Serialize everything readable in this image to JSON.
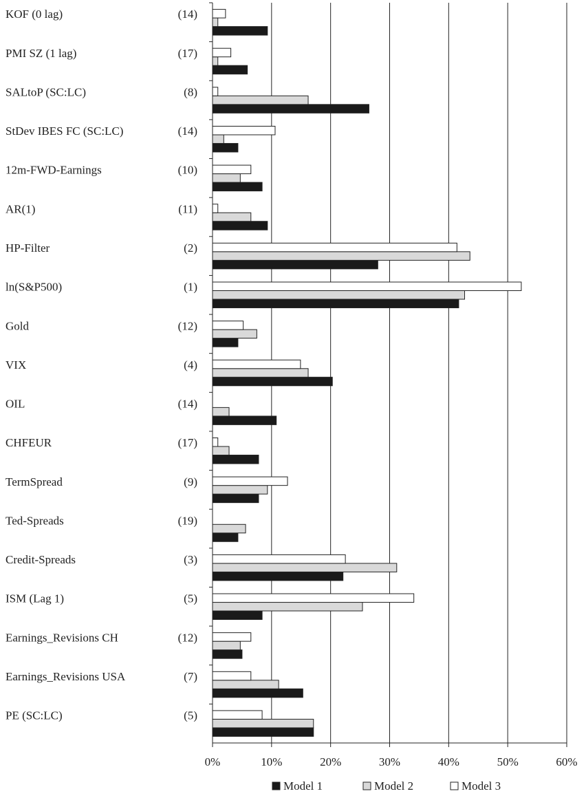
{
  "chart_data": {
    "type": "hbar",
    "categories": [
      "KOF (0 lag)",
      "PMI SZ (1 lag)",
      "SALtoP (SC:LC)",
      "StDev IBES FC (SC:LC)",
      "12m-FWD-Earnings",
      "AR(1)",
      "HP-Filter",
      "ln(S&P500)",
      "Gold",
      "VIX",
      "OIL",
      "CHFEUR",
      "TermSpread",
      "Ted-Spreads",
      "Credit-Spreads",
      "ISM (Lag 1)",
      "Earnings_Revisions CH",
      "Earnings_Revisions USA",
      "PE (SC:LC)"
    ],
    "ranks": [
      "(14)",
      "(17)",
      "(8)",
      "(14)",
      "(10)",
      "(11)",
      "(2)",
      "(1)",
      "(12)",
      "(4)",
      "(14)",
      "(17)",
      "(9)",
      "(19)",
      "(3)",
      "(5)",
      "(12)",
      "(7)",
      "(5)"
    ],
    "series": [
      {
        "name": "Model 1",
        "color": "#1a1a1a",
        "values": [
          9.3,
          5.9,
          26.5,
          4.3,
          8.4,
          9.3,
          28.0,
          41.7,
          4.3,
          20.3,
          10.8,
          7.8,
          7.8,
          4.3,
          22.1,
          8.4,
          5.0,
          15.3,
          17.1
        ]
      },
      {
        "name": "Model 2",
        "color": "#d9d9d9",
        "values": [
          0.9,
          0.9,
          16.2,
          1.9,
          4.7,
          6.5,
          43.6,
          42.7,
          7.5,
          16.2,
          2.8,
          2.8,
          9.3,
          5.6,
          31.2,
          25.4,
          4.7,
          11.2,
          17.1
        ]
      },
      {
        "name": "Model 3",
        "color": "#ffffff",
        "values": [
          2.2,
          3.1,
          0.9,
          10.6,
          6.5,
          0.9,
          41.4,
          52.3,
          5.2,
          14.9,
          0,
          0.9,
          12.7,
          0,
          22.5,
          34.1,
          6.5,
          6.5,
          8.4
        ]
      }
    ],
    "xlim": [
      0,
      60
    ],
    "xticks": [
      {
        "value": 0,
        "label": "0%"
      },
      {
        "value": 10,
        "label": "10%"
      },
      {
        "value": 20,
        "label": "20%"
      },
      {
        "value": 30,
        "label": "30%"
      },
      {
        "value": 40,
        "label": "40%"
      },
      {
        "value": 50,
        "label": "50%"
      },
      {
        "value": 60,
        "label": "60%"
      }
    ],
    "grid": true,
    "legend": "bottom"
  }
}
